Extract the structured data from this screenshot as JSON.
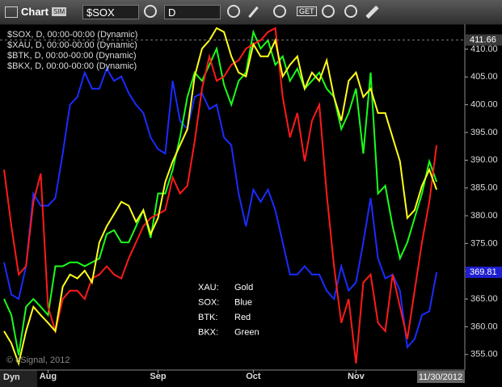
{
  "toolbar": {
    "title": "Chart",
    "badge": "SIM",
    "symbol": "$SOX",
    "interval": "D",
    "button": "GET"
  },
  "chart_data": {
    "type": "line",
    "categories": [
      null,
      null,
      null,
      null,
      null,
      null,
      "Aug",
      null,
      null,
      null,
      null,
      null,
      null,
      null,
      null,
      null,
      null,
      null,
      null,
      null,
      null,
      "Sep",
      null,
      null,
      null,
      null,
      null,
      null,
      null,
      null,
      null,
      null,
      null,
      null,
      "Oct",
      null,
      null,
      null,
      null,
      null,
      null,
      null,
      null,
      null,
      null,
      null,
      null,
      null,
      "Nov",
      null,
      null,
      null,
      null,
      null,
      null,
      null,
      null,
      null,
      null,
      null
    ],
    "series": [
      {
        "name": "$SOX, D, 00:00-00:00 (Dynamic)",
        "color": "#1a2cff",
        "values": [
          371.6,
          365.8,
          365,
          370.9,
          384,
          381.8,
          381.8,
          383.2,
          391.2,
          400,
          401.4,
          405.8,
          402.9,
          402.9,
          406.5,
          404.3,
          405.1,
          402.1,
          400,
          398.5,
          394.1,
          392,
          391.2,
          404.3,
          397.1,
          395.6,
          401.4,
          402.1,
          399.2,
          400,
          394.1,
          392.7,
          384,
          378.1,
          384.7,
          382.5,
          384.7,
          381,
          375.2,
          369.4,
          369.4,
          370.9,
          369.4,
          369.4,
          366.5,
          365,
          370.9,
          366.5,
          368,
          375.2,
          383.2,
          372.3,
          368.7,
          369.4,
          366.5,
          356.3,
          357.8,
          362.1,
          362.8,
          369.81
        ]
      },
      {
        "name": "$XAU, D, 00:00-00:00 (Dynamic)",
        "color": "#ffff1a",
        "values": [
          359.2,
          357,
          353.4,
          359.2,
          363.6,
          362.1,
          360.7,
          359.2,
          367.2,
          369.4,
          368.7,
          370.1,
          368,
          375.2,
          378.1,
          380.3,
          382.5,
          381.8,
          378.9,
          381,
          376.7,
          379.6,
          386.1,
          389.8,
          392.7,
          395.6,
          405.1,
          410.1,
          411.6,
          413.8,
          413.1,
          408.7,
          405.8,
          405.1,
          410.9,
          408.7,
          408.7,
          411.6,
          405.1,
          407.2,
          408.7,
          402.9,
          405.8,
          404.3,
          408,
          401.4,
          397.1,
          404.3,
          405.8,
          401.4,
          402.9,
          398.5,
          398.5,
          394.1,
          389.8,
          379.6,
          381,
          385.4,
          388.3,
          384.7
        ]
      },
      {
        "name": "$BTK, D, 00:00-00:00 (Dynamic)",
        "color": "#ff1a1a",
        "values": [
          388.3,
          378.1,
          369.4,
          370.9,
          382.5,
          387.6,
          363.6,
          359.2,
          365,
          366.5,
          366.5,
          365,
          368.7,
          369.4,
          370.9,
          369.4,
          368.7,
          372.3,
          375.2,
          378.1,
          379.6,
          380.3,
          381,
          386.9,
          384,
          385.4,
          393.4,
          402.9,
          408.7,
          404.3,
          405.1,
          407.2,
          408,
          410.1,
          410.9,
          411.6,
          413.1,
          413.8,
          401.4,
          394.1,
          398.5,
          389.8,
          397.1,
          400,
          384,
          370.9,
          360.7,
          365,
          353.4,
          368,
          369.4,
          360.7,
          359.2,
          369.4,
          363.6,
          357.8,
          366.5,
          375.2,
          382.5,
          392.7
        ]
      },
      {
        "name": "$BKX, D, 00:00-00:00 (Dynamic)",
        "color": "#1aff1a",
        "values": [
          365,
          362.1,
          354.9,
          363.6,
          365,
          363.6,
          362.1,
          370.9,
          370.9,
          371.6,
          371.6,
          370.9,
          371.6,
          372.3,
          376.7,
          377.4,
          375.2,
          375.2,
          378.1,
          381,
          376,
          384,
          384,
          388.3,
          394.1,
          401.4,
          405.8,
          404.3,
          407.2,
          410.1,
          403.6,
          400,
          404.3,
          405.8,
          413.1,
          410.1,
          411.6,
          407.2,
          408.7,
          404.3,
          406.5,
          402.9,
          404.3,
          405.8,
          402.9,
          401.4,
          395.6,
          398.5,
          402.9,
          391.2,
          405.8,
          384,
          385.4,
          378.1,
          372.3,
          375.2,
          379.6,
          384,
          389.8,
          386.1
        ]
      }
    ],
    "ylim": [
      352.2,
      414.5
    ],
    "yticks": [
      {
        "value": 355,
        "label": "355.00"
      },
      {
        "value": 360,
        "label": "360.00"
      },
      {
        "value": 365,
        "label": "365.00"
      },
      {
        "value": 370,
        "label": "370.00"
      },
      {
        "value": 375,
        "label": "375.00"
      },
      {
        "value": 380,
        "label": "380.00"
      },
      {
        "value": 385,
        "label": "385.00"
      },
      {
        "value": 390,
        "label": "390.00"
      },
      {
        "value": 395,
        "label": "395.00"
      },
      {
        "value": 400,
        "label": "400.00"
      },
      {
        "value": 405,
        "label": "405.00"
      },
      {
        "value": 410,
        "label": "410.00"
      }
    ],
    "grid": false,
    "price_labels": [
      {
        "value": 411.66,
        "color": "#3a3a3a"
      },
      {
        "value": 369.81,
        "color": "#1f1fd0"
      }
    ],
    "annotation": [
      [
        "XAU:",
        "Gold"
      ],
      [
        "SOX:",
        "Blue"
      ],
      [
        "BTK:",
        "Red"
      ],
      [
        "BKX:",
        "Green"
      ]
    ],
    "copyright": "© eSignal, 2012",
    "mode": "Dyn",
    "last_date": "11/30/2012"
  }
}
